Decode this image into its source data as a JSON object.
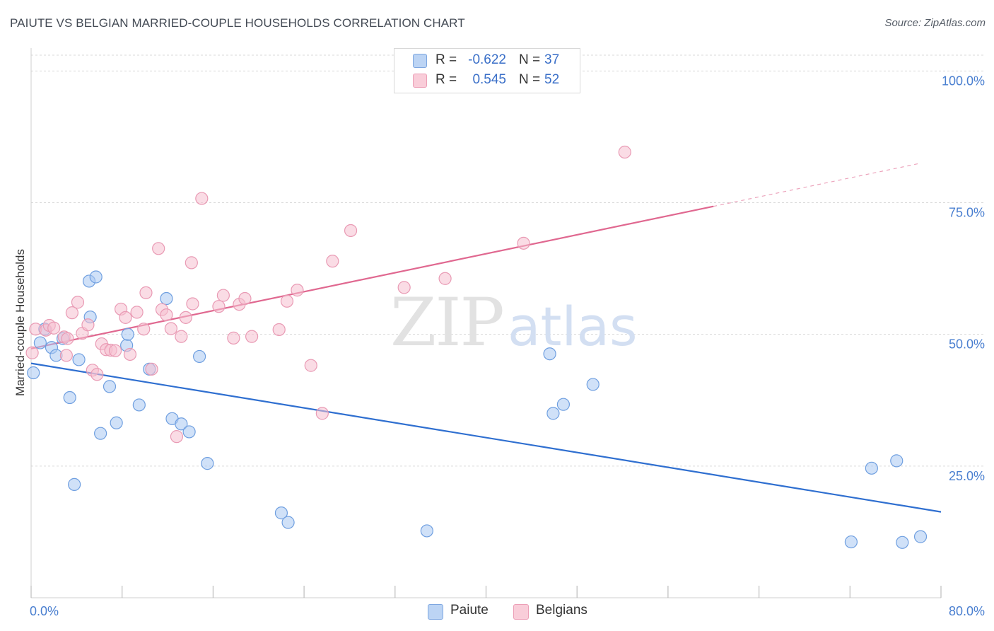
{
  "header": {
    "title": "PAIUTE VS BELGIAN MARRIED-COUPLE HOUSEHOLDS CORRELATION CHART",
    "source": "Source: ZipAtlas.com"
  },
  "watermark": {
    "zip": "ZIP",
    "atlas": "atlas"
  },
  "legend": {
    "rows": [
      {
        "r_label": "R =",
        "r_value": "-0.622",
        "n_label": "N =",
        "n_value": "37"
      },
      {
        "r_label": "R =",
        "r_value": "0.545",
        "n_label": "N =",
        "n_value": "52"
      }
    ]
  },
  "bottom_legend": {
    "paiute": "Paiute",
    "belgians": "Belgians"
  },
  "colors": {
    "paiute_fill": "#a9c8f2",
    "paiute_stroke": "#6f9fe0",
    "paiute_line": "#2f6fd0",
    "belgian_fill": "#f6bfd0",
    "belgian_stroke": "#e99ab4",
    "belgian_line": "#e06890",
    "grid": "#d9d9d9",
    "tick_label": "#4a7fd0"
  },
  "chart_data": {
    "type": "scatter",
    "title": "PAIUTE VS BELGIAN MARRIED-COUPLE HOUSEHOLDS CORRELATION CHART",
    "xlabel": "",
    "ylabel": "Married-couple Households",
    "xlim": [
      0,
      80
    ],
    "ylim": [
      0,
      103
    ],
    "x_tick_labels": [
      "0.0%",
      "80.0%"
    ],
    "y_ticks": [
      25,
      50,
      75,
      100
    ],
    "y_tick_labels": [
      "25.0%",
      "50.0%",
      "75.0%",
      "100.0%"
    ],
    "grid": true,
    "series": [
      {
        "name": "Paiute",
        "trend": {
          "x0": 0,
          "y0": 44.5,
          "x1": 80,
          "y1": 16.3,
          "solid_until": 80
        },
        "points": [
          [
            0.2,
            42.7
          ],
          [
            0.8,
            48.4
          ],
          [
            1.2,
            51.0
          ],
          [
            1.8,
            47.5
          ],
          [
            2.2,
            46.0
          ],
          [
            2.8,
            49.2
          ],
          [
            3.4,
            38.0
          ],
          [
            3.8,
            21.5
          ],
          [
            4.2,
            45.2
          ],
          [
            5.1,
            60.1
          ],
          [
            5.2,
            53.3
          ],
          [
            5.7,
            60.9
          ],
          [
            6.1,
            31.2
          ],
          [
            6.9,
            40.1
          ],
          [
            7.5,
            33.2
          ],
          [
            8.4,
            47.9
          ],
          [
            8.5,
            50.0
          ],
          [
            9.5,
            36.6
          ],
          [
            10.4,
            43.4
          ],
          [
            11.9,
            56.8
          ],
          [
            12.4,
            34.0
          ],
          [
            13.2,
            33.0
          ],
          [
            13.9,
            31.5
          ],
          [
            14.8,
            45.8
          ],
          [
            15.5,
            25.5
          ],
          [
            22.0,
            16.1
          ],
          [
            22.6,
            14.3
          ],
          [
            34.8,
            12.7
          ],
          [
            45.6,
            46.3
          ],
          [
            45.9,
            35.0
          ],
          [
            46.8,
            36.7
          ],
          [
            49.4,
            40.5
          ],
          [
            72.1,
            10.6
          ],
          [
            73.9,
            24.6
          ],
          [
            76.1,
            26.0
          ],
          [
            76.6,
            10.5
          ],
          [
            78.2,
            11.6
          ]
        ]
      },
      {
        "name": "Belgians",
        "trend": {
          "x0": 0,
          "y0": 47.3,
          "x1": 80,
          "y1": 83.3,
          "solid_until": 60
        },
        "points": [
          [
            0.1,
            46.5
          ],
          [
            0.4,
            51.0
          ],
          [
            1.3,
            50.8
          ],
          [
            1.6,
            51.7
          ],
          [
            2.0,
            51.2
          ],
          [
            2.9,
            49.5
          ],
          [
            3.1,
            46.0
          ],
          [
            3.2,
            49.2
          ],
          [
            3.6,
            54.1
          ],
          [
            4.1,
            56.1
          ],
          [
            4.5,
            50.2
          ],
          [
            5.0,
            51.8
          ],
          [
            5.4,
            43.2
          ],
          [
            5.8,
            42.4
          ],
          [
            6.2,
            48.2
          ],
          [
            6.6,
            47.1
          ],
          [
            7.0,
            47.0
          ],
          [
            7.4,
            46.9
          ],
          [
            7.9,
            54.8
          ],
          [
            8.3,
            53.2
          ],
          [
            8.7,
            46.2
          ],
          [
            9.3,
            54.2
          ],
          [
            9.9,
            51.0
          ],
          [
            10.1,
            57.9
          ],
          [
            10.6,
            43.4
          ],
          [
            11.2,
            66.3
          ],
          [
            11.5,
            54.7
          ],
          [
            11.9,
            53.7
          ],
          [
            12.3,
            51.1
          ],
          [
            12.8,
            30.6
          ],
          [
            13.2,
            49.6
          ],
          [
            13.6,
            53.2
          ],
          [
            14.1,
            63.6
          ],
          [
            14.2,
            55.8
          ],
          [
            15.0,
            75.8
          ],
          [
            16.5,
            55.3
          ],
          [
            16.9,
            57.4
          ],
          [
            17.8,
            49.3
          ],
          [
            18.3,
            55.7
          ],
          [
            18.8,
            56.8
          ],
          [
            19.4,
            49.6
          ],
          [
            21.8,
            50.9
          ],
          [
            22.5,
            56.3
          ],
          [
            23.4,
            58.4
          ],
          [
            24.6,
            44.1
          ],
          [
            25.6,
            35.0
          ],
          [
            26.5,
            63.9
          ],
          [
            28.1,
            69.7
          ],
          [
            32.8,
            58.9
          ],
          [
            36.4,
            60.6
          ],
          [
            43.3,
            67.3
          ],
          [
            52.2,
            84.6
          ]
        ]
      }
    ]
  }
}
